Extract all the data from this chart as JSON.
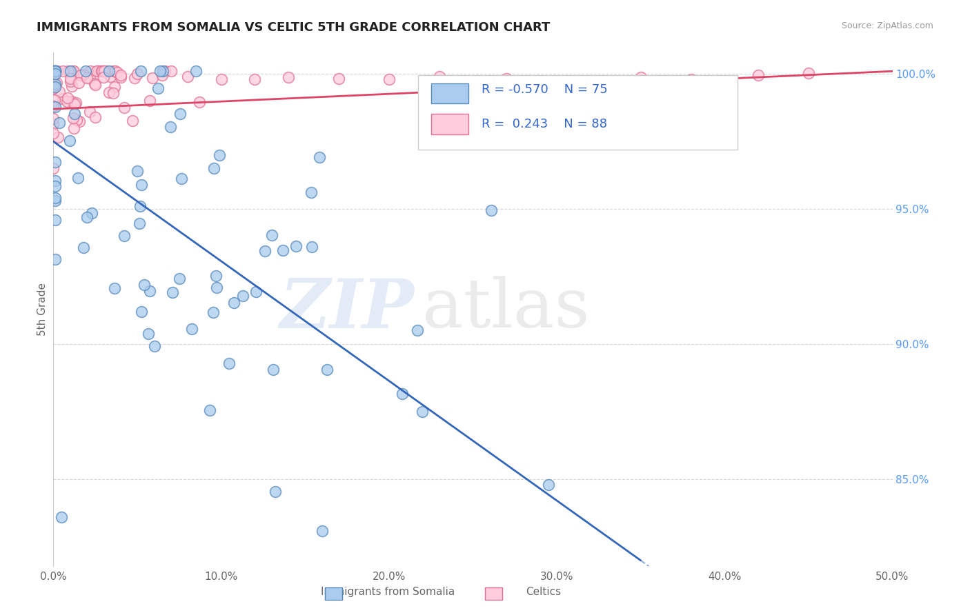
{
  "title": "IMMIGRANTS FROM SOMALIA VS CELTIC 5TH GRADE CORRELATION CHART",
  "source_text": "Source: ZipAtlas.com",
  "ylabel": "5th Grade",
  "watermark_zip": "ZIP",
  "watermark_atlas": "atlas",
  "xlim": [
    0.0,
    0.5
  ],
  "ylim": [
    0.818,
    1.008
  ],
  "xtick_labels": [
    "0.0%",
    "10.0%",
    "20.0%",
    "30.0%",
    "40.0%",
    "50.0%"
  ],
  "xtick_values": [
    0.0,
    0.1,
    0.2,
    0.3,
    0.4,
    0.5
  ],
  "ytick_right_labels": [
    "85.0%",
    "90.0%",
    "95.0%",
    "100.0%"
  ],
  "ytick_right_values": [
    0.85,
    0.9,
    0.95,
    1.0
  ],
  "hline_positions": [
    0.85,
    0.9,
    0.95,
    1.0
  ],
  "hline_styles": [
    "--",
    "--",
    "--",
    "--"
  ],
  "blue_color": "#7aadd4",
  "pink_color": "#f4a0b0",
  "blue_edge_color": "#5588bb",
  "pink_edge_color": "#e07090",
  "blue_line_color": "#3366bb",
  "pink_line_color": "#dd4466",
  "blue_fill_color": "#aaccee",
  "pink_fill_color": "#ffccdd",
  "legend_r_blue": "-0.570",
  "legend_n_blue": "75",
  "legend_r_pink": "0.243",
  "legend_n_pink": "88",
  "legend_label_blue": "Immigrants from Somalia",
  "legend_label_pink": "Celtics",
  "blue_n": 75,
  "pink_n": 88,
  "background_color": "#ffffff",
  "grid_color": "#cccccc",
  "right_tick_color": "#5599ff",
  "title_color": "#222222",
  "axis_label_color": "#666666"
}
